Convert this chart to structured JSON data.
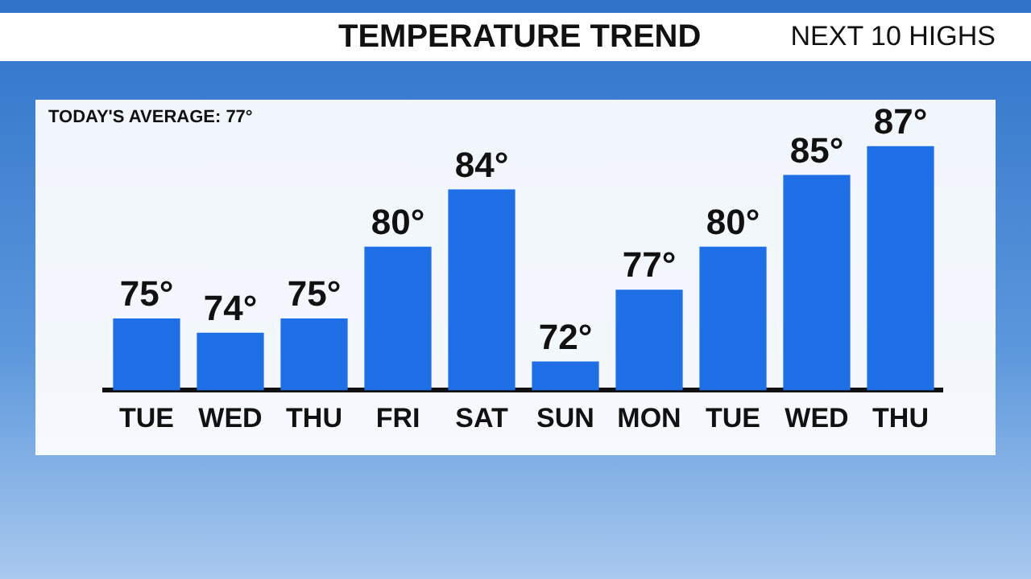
{
  "chart_data": {
    "type": "bar",
    "title": "TEMPERATURE TREND",
    "subtitle": "NEXT 10 HIGHS",
    "annotations": [
      "TODAY'S AVERAGE: 77°"
    ],
    "categories": [
      "TUE",
      "WED",
      "THU",
      "FRI",
      "SAT",
      "SUN",
      "MON",
      "TUE",
      "WED",
      "THU"
    ],
    "values": [
      75,
      74,
      75,
      80,
      84,
      72,
      77,
      80,
      85,
      87
    ],
    "value_labels": [
      "75°",
      "74°",
      "75°",
      "80°",
      "84°",
      "72°",
      "77°",
      "80°",
      "85°",
      "87°"
    ],
    "color": "#1e6ee6",
    "tick_labels": "x",
    "grid": false,
    "legend": false
  }
}
